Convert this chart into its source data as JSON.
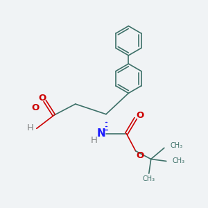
{
  "bg_color": "#f0f3f5",
  "bond_color": "#3d7068",
  "bond_width": 1.2,
  "N_color": "#1a1aff",
  "O_color": "#cc0000",
  "H_color": "#808080",
  "figsize": [
    3.0,
    3.0
  ],
  "dpi": 100,
  "xlim": [
    0,
    10
  ],
  "ylim": [
    0,
    10
  ]
}
